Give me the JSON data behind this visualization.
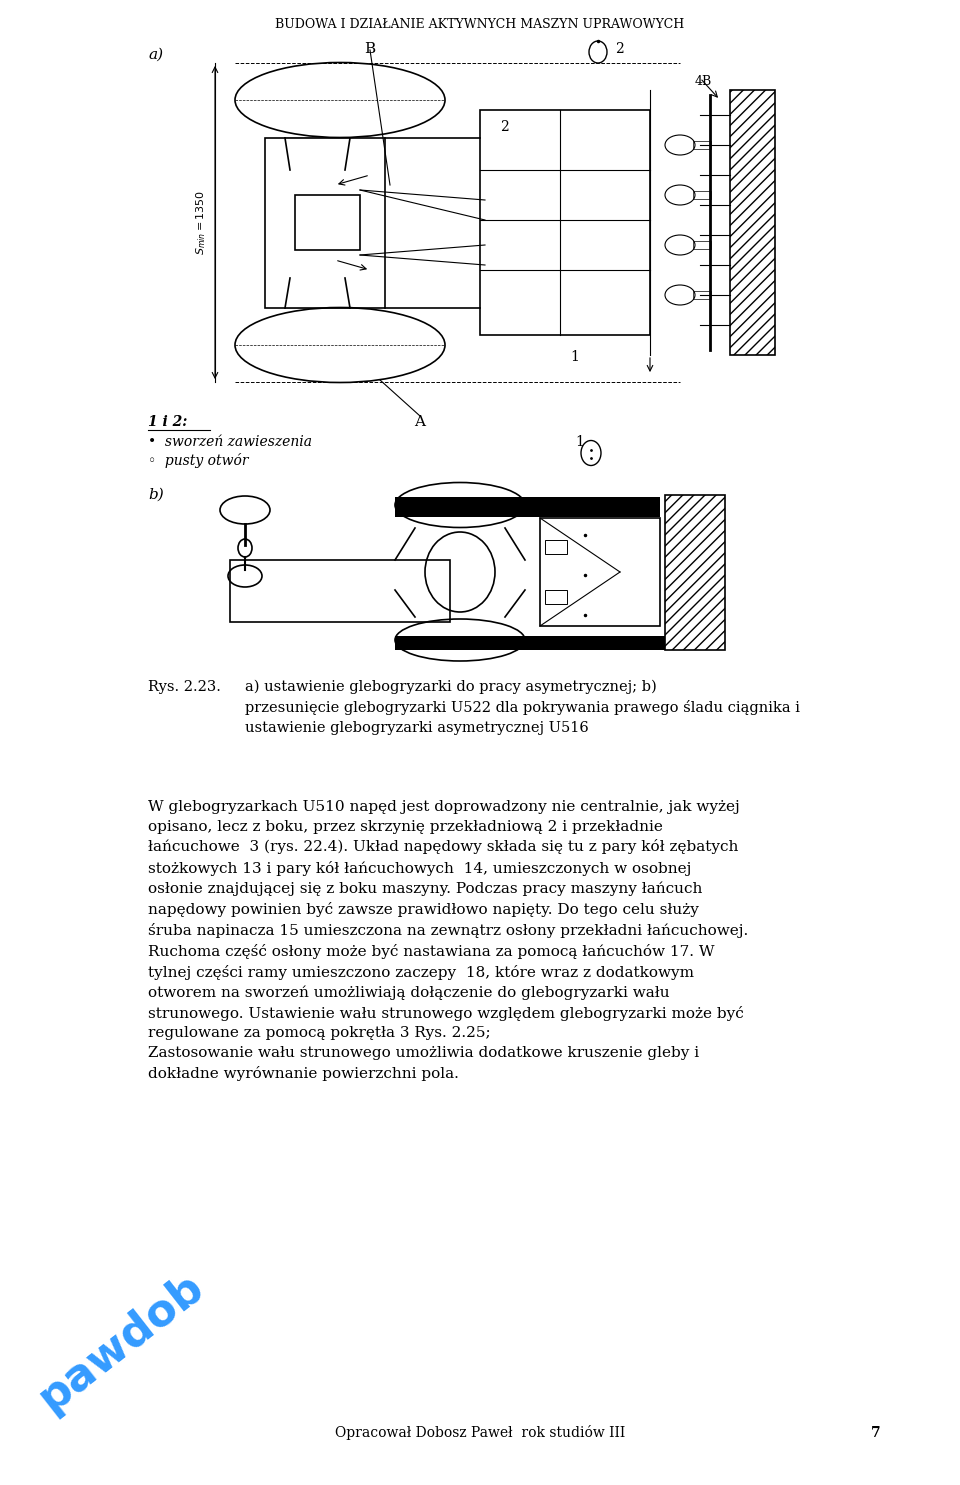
{
  "page_width": 9.6,
  "page_height": 14.85,
  "dpi": 100,
  "background_color": "#ffffff",
  "header_text": "BUDOWA I DZIAŁANIE AKTYWNYCH MASZYN UPRAWOWYCH",
  "header_fontsize": 9.0,
  "caption_text_1": "Rys. 2.23.",
  "caption_text_2": "a) ustawienie glebogryzarki do pracy asymetrycznej; b) przesunięcie glebogryzarki U522 dla pokrywania prawego śladu ciągnika i ustawienie glebogryzarki asymetrycznej U516",
  "caption_fontsize": 10.5,
  "body_text": "W glebogryzarkach U510 napęd jest doprowadzony nie centralnie, jak wyżej opisano, lecz z boku, przez skrzynię przekładniową 2 i przekładnie łańcuchowe 3 (rys. 22.4). Układ napędowy składa się tu z pary kół zębatych stożko-wych 13 i pary kół łańcuchowych 14, umieszczonych w osobnej osłonie znajdującej się z boku maszyny. Podczas pracy maszyny łańcuch napędowy powinien być zawsze prawidłowo napięty. Do tego celu służy śruba napinacza 15 umieszczona na zewnątrz osłony przekładni łańcuchowej. Ruchoma część osłony może być nastawiana za pomocą łańcuchów 17. W tylnej części ramy umieszczono zaczepy 18, które wraz z dodatkowym otworem na sworzef umożliwiają dołączenie do glebogryzarki wału strunowego. Ustawienie wału strunowego względem glebogryzarki może być regulowane za pomocą pokrętła 3 Rys. 2.25;\nZastosowanie wału strunowego umożliwia dodatkowe kruszenie gleby i dokładne wyrównanie powierzchni pola.",
  "body_fontsize": 11.0,
  "footer_text": "Opracował Dobosz Paweł  rok studiów III",
  "page_number": "7",
  "footer_fontsize": 10
}
